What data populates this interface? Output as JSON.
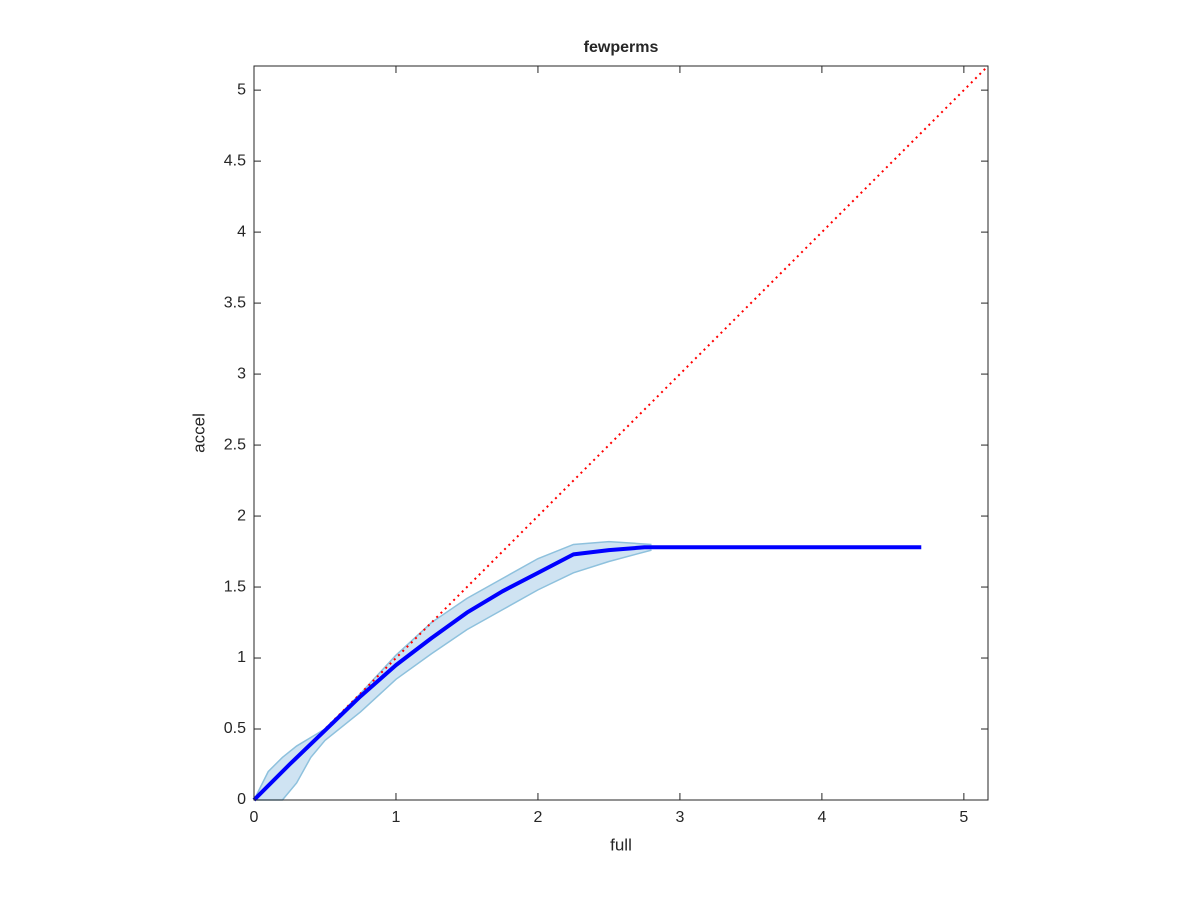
{
  "chart_data": {
    "type": "line",
    "title": "fewperms",
    "x_label": "full",
    "y_label": "accel",
    "xlim": [
      0,
      5.17
    ],
    "ylim": [
      0,
      5.17
    ],
    "xticks": [
      0,
      1,
      2,
      3,
      4,
      5
    ],
    "yticks": [
      0,
      0.5,
      1,
      1.5,
      2,
      2.5,
      3,
      3.5,
      4,
      4.5,
      5
    ],
    "band": {
      "color": "#cfe3f2",
      "edge_color": "#8ec1dd",
      "x": [
        0,
        0.1,
        0.2,
        0.3,
        0.4,
        0.5,
        0.75,
        1,
        1.25,
        1.5,
        1.75,
        2,
        2.25,
        2.5,
        2.8
      ],
      "upper": [
        0,
        0.2,
        0.3,
        0.38,
        0.44,
        0.5,
        0.75,
        1.02,
        1.25,
        1.42,
        1.56,
        1.7,
        1.8,
        1.82,
        1.8
      ],
      "lower": [
        0,
        0,
        0,
        0.12,
        0.3,
        0.42,
        0.62,
        0.85,
        1.03,
        1.2,
        1.34,
        1.48,
        1.6,
        1.68,
        1.76
      ]
    },
    "series": [
      {
        "color": "#0000ff",
        "style": "solid",
        "x": [
          0,
          0.25,
          0.5,
          0.75,
          1,
          1.25,
          1.5,
          1.75,
          2,
          2.25,
          2.5,
          2.75,
          3,
          4,
          4.7
        ],
        "values": [
          0,
          0.25,
          0.49,
          0.73,
          0.95,
          1.14,
          1.32,
          1.47,
          1.6,
          1.73,
          1.76,
          1.78,
          1.78,
          1.78,
          1.78
        ]
      },
      {
        "color": "#ff0000",
        "style": "dotted",
        "x": [
          0,
          5.17
        ],
        "values": [
          0,
          5.17
        ]
      }
    ]
  }
}
